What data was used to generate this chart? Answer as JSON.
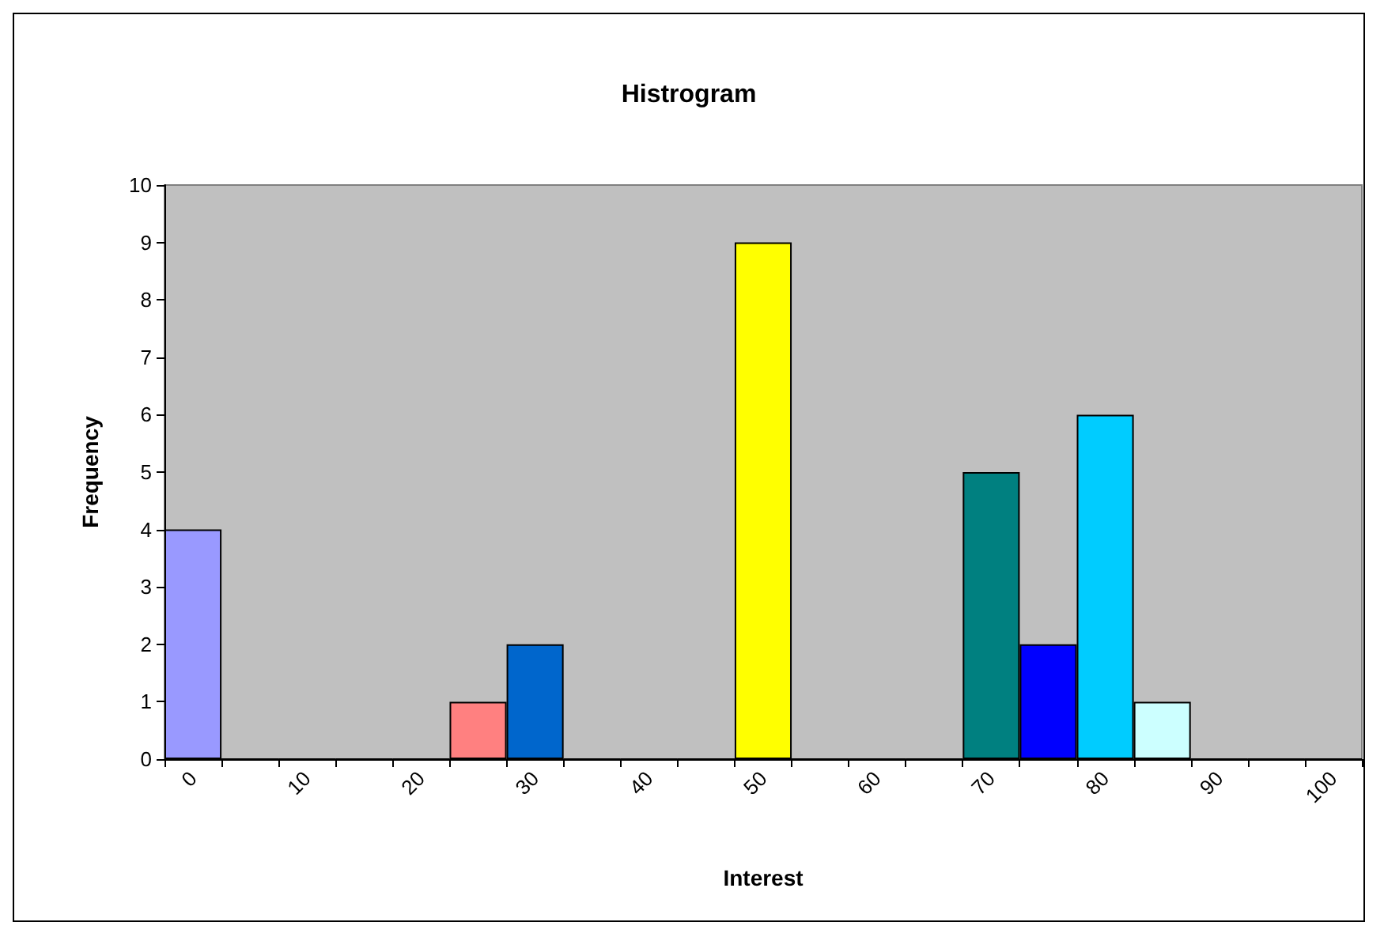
{
  "chart_data": {
    "type": "bar",
    "title": "Histrogram",
    "xlabel": "Interest",
    "ylabel": "Frequency",
    "categories": [
      "0",
      null,
      "10",
      null,
      "20",
      null,
      "30",
      null,
      "40",
      null,
      "50",
      null,
      "60",
      null,
      "70",
      null,
      "80",
      null,
      "90",
      null,
      "100"
    ],
    "values": [
      4,
      0,
      0,
      0,
      0,
      1,
      2,
      0,
      0,
      0,
      9,
      0,
      0,
      0,
      5,
      2,
      6,
      1,
      0,
      0,
      0
    ],
    "colors": [
      "#9999ff",
      null,
      null,
      null,
      null,
      "#ff8080",
      "#0066cc",
      null,
      null,
      null,
      "#ffff00",
      null,
      null,
      null,
      "#008080",
      "#0000ff",
      "#00ccff",
      "#ccffff",
      null,
      null,
      null
    ],
    "ylim": [
      0,
      10
    ],
    "yticks": [
      0,
      1,
      2,
      3,
      4,
      5,
      6,
      7,
      8,
      9,
      10
    ],
    "grid": false
  }
}
